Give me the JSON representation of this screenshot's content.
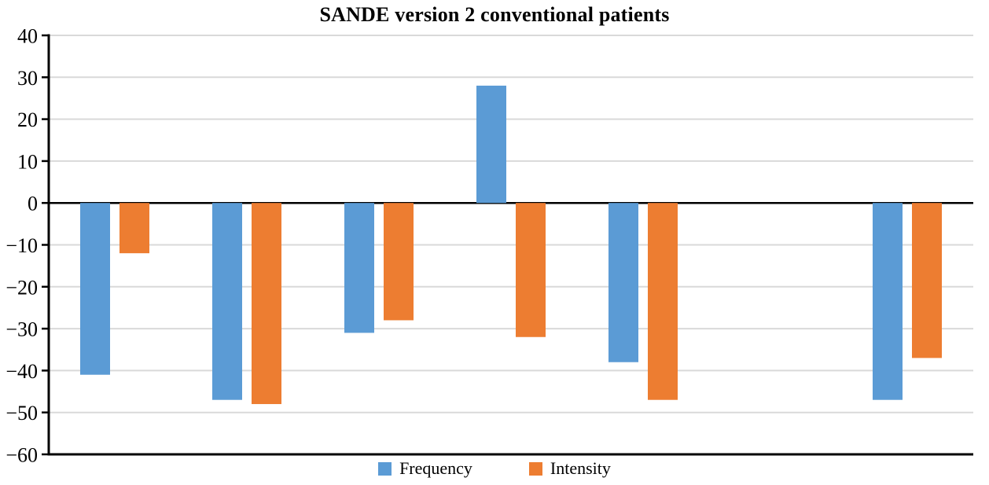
{
  "title": "SANDE version 2 conventional patients",
  "colors": {
    "frequency": "#5B9BD5",
    "intensity": "#ED7D31",
    "gridline": "#D9D9D9",
    "axis": "#000000",
    "background": "#FFFFFF"
  },
  "chart_data": {
    "type": "bar",
    "title": "SANDE version 2 conventional patients",
    "xlabel": "",
    "ylabel": "",
    "categories": [
      "",
      "",
      "",
      "",
      "",
      "",
      ""
    ],
    "series": [
      {
        "name": "Frequency",
        "color": "#5B9BD5",
        "values": [
          -41,
          -47,
          -31,
          28,
          -38,
          0,
          -47
        ]
      },
      {
        "name": "Intensity",
        "color": "#ED7D31",
        "values": [
          -12,
          -48,
          -28,
          -32,
          -47,
          0,
          -37
        ]
      }
    ],
    "ylim": [
      -60,
      40
    ],
    "yticks": [
      40,
      30,
      20,
      10,
      0,
      -10,
      -20,
      -30,
      -40,
      -50,
      -60
    ],
    "ytick_labels": [
      "40",
      "30",
      "20",
      "10",
      "0",
      "−10",
      "−20",
      "−30",
      "−40",
      "−50",
      "−60"
    ],
    "grid": true,
    "legend_position": "bottom"
  },
  "legend": {
    "items": [
      {
        "label": "Frequency",
        "color": "#5B9BD5"
      },
      {
        "label": "Intensity",
        "color": "#ED7D31"
      }
    ]
  }
}
